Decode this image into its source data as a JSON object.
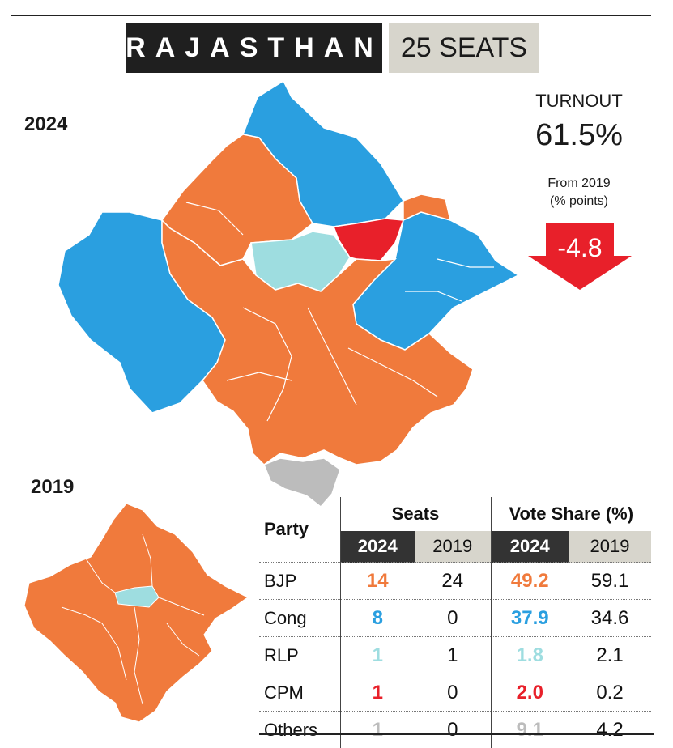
{
  "header": {
    "state": "RAJASTHAN",
    "seats": "25 SEATS"
  },
  "years": {
    "current": "2024",
    "previous": "2019"
  },
  "turnout": {
    "label": "TURNOUT",
    "value": "61.5%",
    "change_label_line1": "From 2019",
    "change_label_line2": "(% points)",
    "change": "-4.8"
  },
  "colors": {
    "BJP": "#f07a3c",
    "Cong": "#2a9fe0",
    "RLP": "#9edde0",
    "CPM": "#e8202a",
    "Others": "#bcbcbc"
  },
  "table": {
    "party_header": "Party",
    "seats_header": "Seats",
    "vote_header": "Vote Share (%)",
    "year_new": "2024",
    "year_old": "2019",
    "rows": [
      {
        "party": "BJP",
        "seats_2024": "14",
        "seats_2019": "24",
        "vote_2024": "49.2",
        "vote_2019": "59.1"
      },
      {
        "party": "Cong",
        "seats_2024": "8",
        "seats_2019": "0",
        "vote_2024": "37.9",
        "vote_2019": "34.6"
      },
      {
        "party": "RLP",
        "seats_2024": "1",
        "seats_2019": "1",
        "vote_2024": "1.8",
        "vote_2019": "2.1"
      },
      {
        "party": "CPM",
        "seats_2024": "1",
        "seats_2019": "0",
        "vote_2024": "2.0",
        "vote_2019": "0.2"
      },
      {
        "party": "Others",
        "seats_2024": "1",
        "seats_2019": "0",
        "vote_2024": "9.1",
        "vote_2019": "4.2"
      }
    ]
  }
}
